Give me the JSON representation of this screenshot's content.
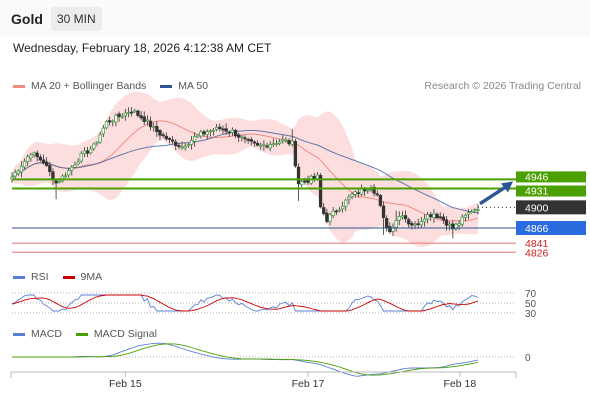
{
  "header": {
    "instrument": "Gold",
    "timeframe": "30 MIN"
  },
  "datetime": "Wednesday, February 18, 2026 4:12:38 AM CET",
  "credit": "Research © 2026 Trading Central",
  "legends": {
    "price": [
      {
        "label": "MA 20 + Bollinger Bands",
        "color": "#f28b82"
      },
      {
        "label": "MA 50",
        "color": "#2f5597"
      }
    ],
    "rsi": [
      {
        "label": "RSI",
        "color": "#5b7fd6"
      },
      {
        "label": "9MA",
        "color": "#cc0000"
      }
    ],
    "macd": [
      {
        "label": "MACD",
        "color": "#5b7fd6"
      },
      {
        "label": "MACD Signal",
        "color": "#4aa000"
      }
    ]
  },
  "colors": {
    "bull": "#3d9a3d",
    "bear": "#a33",
    "band": "#fcd3d3",
    "resistance": "#4aa000",
    "support": "#2f5597",
    "current": "#333333",
    "arrow": "#2f5597",
    "lower": "#e57373"
  },
  "chart_data": [
    {
      "type": "candlestick",
      "panel": "price",
      "x": [
        "Feb 15",
        "Feb 17",
        "Feb 18"
      ],
      "ylim": [
        4810,
        5085
      ],
      "levels": [
        {
          "value": 4946,
          "label": "4946",
          "kind": "resistance"
        },
        {
          "value": 4931,
          "label": "4931",
          "kind": "resistance"
        },
        {
          "value": 4900,
          "label": "4900",
          "kind": "current"
        },
        {
          "value": 4866,
          "label": "4866",
          "kind": "support"
        },
        {
          "value": 4841,
          "label": "4841",
          "kind": "lower"
        },
        {
          "value": 4826,
          "label": "4826",
          "kind": "lower"
        }
      ],
      "anchors": [
        [
          0,
          4950
        ],
        [
          6,
          4990
        ],
        [
          10,
          4975
        ],
        [
          14,
          4940
        ],
        [
          18,
          4960
        ],
        [
          22,
          4985
        ],
        [
          26,
          5000
        ],
        [
          30,
          5040
        ],
        [
          34,
          5050
        ],
        [
          38,
          5060
        ],
        [
          42,
          5045
        ],
        [
          46,
          5025
        ],
        [
          50,
          5010
        ],
        [
          54,
          5000
        ],
        [
          58,
          5015
        ],
        [
          62,
          5025
        ],
        [
          66,
          5030
        ],
        [
          70,
          5025
        ],
        [
          74,
          5010
        ],
        [
          78,
          5000
        ],
        [
          82,
          5005
        ],
        [
          86,
          5010
        ],
        [
          89,
          5005
        ],
        [
          91,
          4940
        ],
        [
          94,
          4945
        ],
        [
          97,
          4950
        ],
        [
          98,
          4900
        ],
        [
          100,
          4880
        ],
        [
          104,
          4900
        ],
        [
          108,
          4920
        ],
        [
          112,
          4930
        ],
        [
          114,
          4935
        ],
        [
          116,
          4920
        ],
        [
          118,
          4880
        ],
        [
          120,
          4860
        ],
        [
          122,
          4880
        ],
        [
          124,
          4890
        ],
        [
          126,
          4875
        ],
        [
          128,
          4870
        ],
        [
          131,
          4885
        ],
        [
          134,
          4890
        ],
        [
          137,
          4880
        ],
        [
          140,
          4865
        ],
        [
          143,
          4880
        ],
        [
          146,
          4895
        ],
        [
          148,
          4900
        ]
      ]
    },
    {
      "type": "line",
      "panel": "rsi",
      "ticks": [
        70,
        50,
        30
      ],
      "tick_labels": [
        "70",
        "50",
        "30"
      ]
    },
    {
      "type": "line",
      "panel": "macd",
      "ticks": [
        0
      ],
      "tick_labels": [
        "0"
      ]
    }
  ]
}
